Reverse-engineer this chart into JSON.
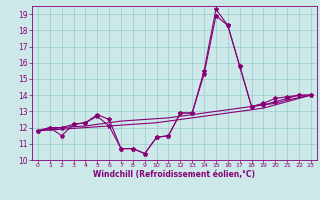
{
  "xlabel": "Windchill (Refroidissement éolien,°C)",
  "background_color": "#cce8e8",
  "grid_color": "#99cccc",
  "line_color": "#880077",
  "xlim": [
    -0.5,
    23.5
  ],
  "ylim": [
    10,
    19.5
  ],
  "xticks": [
    0,
    1,
    2,
    3,
    4,
    5,
    6,
    7,
    8,
    9,
    10,
    11,
    12,
    13,
    14,
    15,
    16,
    17,
    18,
    19,
    20,
    21,
    22,
    23
  ],
  "yticks": [
    10,
    11,
    12,
    13,
    14,
    15,
    16,
    17,
    18,
    19
  ],
  "line1_x": [
    0,
    1,
    2,
    3,
    4,
    5,
    6,
    7,
    8,
    9,
    10,
    11,
    12,
    13,
    14,
    15,
    16,
    17,
    18,
    19,
    20,
    21,
    22,
    23
  ],
  "line1_y": [
    11.8,
    12.0,
    12.0,
    12.2,
    12.3,
    12.8,
    12.5,
    10.7,
    10.7,
    10.4,
    11.4,
    11.5,
    12.9,
    12.9,
    15.5,
    19.3,
    18.3,
    15.8,
    13.3,
    13.5,
    13.8,
    13.9,
    14.0,
    14.0
  ],
  "line2_x": [
    0,
    1,
    2,
    3,
    4,
    5,
    6,
    7,
    8,
    9,
    10,
    11,
    12,
    13,
    14,
    15,
    16,
    17,
    18,
    19,
    20,
    21,
    22,
    23
  ],
  "line2_y": [
    11.8,
    12.0,
    11.5,
    12.2,
    12.3,
    12.7,
    12.1,
    10.7,
    10.7,
    10.4,
    11.4,
    11.5,
    12.9,
    12.9,
    15.3,
    18.9,
    18.3,
    15.8,
    13.3,
    13.4,
    13.6,
    13.8,
    14.0,
    14.0
  ],
  "line3_x": [
    0,
    1,
    2,
    3,
    4,
    5,
    6,
    7,
    8,
    9,
    10,
    11,
    12,
    13,
    14,
    15,
    16,
    17,
    18,
    19,
    20,
    21,
    22,
    23
  ],
  "line3_y": [
    11.8,
    11.85,
    11.9,
    11.95,
    12.0,
    12.05,
    12.1,
    12.15,
    12.2,
    12.25,
    12.3,
    12.4,
    12.5,
    12.6,
    12.7,
    12.8,
    12.9,
    13.0,
    13.1,
    13.2,
    13.4,
    13.6,
    13.8,
    14.0
  ],
  "line4_x": [
    0,
    1,
    2,
    3,
    4,
    5,
    6,
    7,
    8,
    9,
    10,
    11,
    12,
    13,
    14,
    15,
    16,
    17,
    18,
    19,
    20,
    21,
    22,
    23
  ],
  "line4_y": [
    11.8,
    11.9,
    12.0,
    12.05,
    12.1,
    12.2,
    12.3,
    12.4,
    12.45,
    12.5,
    12.55,
    12.6,
    12.7,
    12.8,
    12.9,
    13.0,
    13.1,
    13.2,
    13.3,
    13.4,
    13.5,
    13.7,
    13.85,
    14.0
  ]
}
